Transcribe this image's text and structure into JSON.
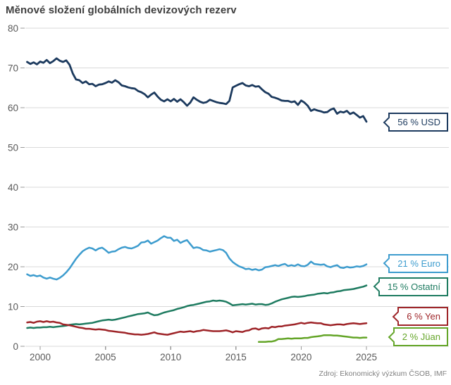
{
  "title": "Měnové složení globálních devizových rezerv",
  "source": "Zdroj: Ekonomický výzkum ČSOB, IMF",
  "chart_data": {
    "type": "line",
    "title": "Měnové složení globálních devizových rezerv",
    "xlabel": "",
    "ylabel": "",
    "grid": true,
    "x_axis": {
      "ticks": [
        2000,
        2005,
        2010,
        2015,
        2020,
        2025
      ],
      "range": [
        1998.7,
        2025.6
      ]
    },
    "y_axis": {
      "ticks": [
        0,
        10,
        20,
        30,
        40,
        50,
        60,
        70,
        80
      ],
      "range": [
        0,
        80
      ]
    },
    "x_unit": "year (quarterly data)",
    "y_unit": "% of global FX reserves",
    "series": [
      {
        "key": "ostatni",
        "name": "Ostatní",
        "color": "#1e7b60",
        "width": 2.5,
        "callout_label": "15 % Ostatní",
        "callout_value": 15.05,
        "start_year": 1999.0,
        "step": 0.25,
        "values": [
          4.6,
          4.7,
          4.6,
          4.7,
          4.7,
          4.8,
          4.8,
          4.9,
          4.8,
          4.9,
          5.0,
          5.1,
          5.2,
          5.4,
          5.5,
          5.6,
          5.5,
          5.6,
          5.7,
          5.8,
          5.9,
          6.1,
          6.3,
          6.5,
          6.6,
          6.7,
          6.6,
          6.7,
          6.9,
          7.1,
          7.3,
          7.5,
          7.7,
          7.9,
          8.1,
          8.2,
          8.3,
          8.5,
          8.1,
          7.8,
          7.9,
          8.2,
          8.5,
          8.7,
          8.9,
          9.1,
          9.4,
          9.6,
          9.8,
          10.1,
          10.3,
          10.4,
          10.6,
          10.8,
          11.0,
          11.2,
          11.3,
          11.5,
          11.4,
          11.5,
          11.4,
          11.2,
          10.8,
          10.3,
          10.4,
          10.5,
          10.6,
          10.5,
          10.6,
          10.7,
          10.5,
          10.6,
          10.6,
          10.4,
          10.5,
          10.8,
          11.2,
          11.5,
          11.8,
          12.0,
          12.2,
          12.4,
          12.5,
          12.4,
          12.5,
          12.6,
          12.8,
          12.9,
          13.0,
          13.2,
          13.3,
          13.4,
          13.3,
          13.5,
          13.6,
          13.8,
          13.9,
          14.1,
          14.2,
          14.3,
          14.4,
          14.6,
          14.8,
          15.0,
          15.3
        ]
      },
      {
        "key": "yen",
        "name": "Yen",
        "color": "#9e2428",
        "width": 2.5,
        "callout_label": "6 % Yen",
        "callout_value": 7.55,
        "start_year": 1999.0,
        "step": 0.25,
        "values": [
          6.0,
          6.1,
          5.9,
          6.2,
          6.3,
          6.1,
          6.3,
          6.1,
          6.2,
          6.0,
          5.9,
          5.5,
          5.4,
          5.3,
          5.1,
          4.9,
          4.7,
          4.6,
          4.4,
          4.4,
          4.3,
          4.2,
          4.3,
          4.2,
          4.1,
          3.9,
          3.8,
          3.7,
          3.6,
          3.5,
          3.4,
          3.2,
          3.1,
          3.0,
          3.0,
          2.9,
          3.0,
          3.1,
          3.3,
          3.5,
          3.2,
          3.1,
          3.0,
          2.9,
          3.1,
          3.3,
          3.5,
          3.7,
          3.6,
          3.7,
          3.8,
          3.6,
          3.8,
          3.9,
          4.1,
          4.0,
          3.9,
          3.8,
          3.8,
          3.8,
          3.9,
          4.0,
          3.8,
          3.5,
          3.8,
          3.7,
          3.6,
          3.9,
          4.0,
          4.4,
          4.5,
          4.2,
          4.5,
          4.6,
          4.5,
          4.9,
          4.8,
          5.0,
          5.0,
          5.2,
          5.3,
          5.4,
          5.5,
          5.7,
          5.9,
          5.7,
          5.9,
          6.0,
          5.9,
          5.8,
          5.8,
          5.5,
          5.4,
          5.3,
          5.4,
          5.5,
          5.5,
          5.4,
          5.6,
          5.7,
          5.8,
          5.7,
          5.6,
          5.7,
          5.8
        ]
      },
      {
        "key": "juan",
        "name": "Jüan",
        "color": "#64a528",
        "width": 2.5,
        "callout_label": "2 % Jüan",
        "callout_value": 2.4,
        "start_year": 2016.75,
        "step": 0.25,
        "values": [
          1.1,
          1.1,
          1.1,
          1.2,
          1.2,
          1.4,
          1.8,
          1.8,
          1.9,
          2.0,
          1.9,
          2.0,
          2.0,
          2.0,
          2.1,
          2.1,
          2.3,
          2.4,
          2.5,
          2.6,
          2.8,
          2.8,
          2.8,
          2.7,
          2.7,
          2.6,
          2.5,
          2.4,
          2.3,
          2.2,
          2.2,
          2.1,
          2.2,
          2.2
        ]
      },
      {
        "key": "euro",
        "name": "Euro",
        "color": "#3d9cce",
        "width": 2.5,
        "callout_label": "21 % Euro",
        "callout_value": 20.9,
        "start_year": 1999.0,
        "step": 0.25,
        "values": [
          18.1,
          17.7,
          17.9,
          17.6,
          17.8,
          17.3,
          17.0,
          17.3,
          17.0,
          16.8,
          17.2,
          17.8,
          18.6,
          19.6,
          20.8,
          22.0,
          23.0,
          23.9,
          24.4,
          24.8,
          24.6,
          24.1,
          24.6,
          24.8,
          24.2,
          23.5,
          23.8,
          23.9,
          24.4,
          24.8,
          25.0,
          24.7,
          24.6,
          24.9,
          25.3,
          26.1,
          26.2,
          26.6,
          25.8,
          26.2,
          26.6,
          27.2,
          27.7,
          27.3,
          27.3,
          26.5,
          26.8,
          26.0,
          26.4,
          26.7,
          25.7,
          24.7,
          24.9,
          24.7,
          24.2,
          24.1,
          23.8,
          24.0,
          24.2,
          24.4,
          24.2,
          23.5,
          22.1,
          21.2,
          20.6,
          20.1,
          19.8,
          19.4,
          19.5,
          19.2,
          19.4,
          19.1,
          19.3,
          19.9,
          20.0,
          20.2,
          20.4,
          20.2,
          20.5,
          20.7,
          20.2,
          20.4,
          20.2,
          20.6,
          20.2,
          20.1,
          20.5,
          21.3,
          20.7,
          20.6,
          20.5,
          20.6,
          20.1,
          19.9,
          20.2,
          20.4,
          19.8,
          19.7,
          20.0,
          19.8,
          19.9,
          20.1,
          20.0,
          20.2,
          20.6
        ]
      },
      {
        "key": "usd",
        "name": "USD",
        "color": "#1c3a5e",
        "width": 2.8,
        "callout_label": "56 % USD",
        "callout_value": 56.4,
        "start_year": 1999.0,
        "step": 0.25,
        "values": [
          71.5,
          71.0,
          71.4,
          70.9,
          71.6,
          71.3,
          72.0,
          71.2,
          71.7,
          72.4,
          71.8,
          71.5,
          71.9,
          70.8,
          68.6,
          67.1,
          66.9,
          66.2,
          66.6,
          65.9,
          66.0,
          65.4,
          65.8,
          65.9,
          66.2,
          66.6,
          66.3,
          66.9,
          66.4,
          65.6,
          65.4,
          65.1,
          64.9,
          64.8,
          64.2,
          63.9,
          63.4,
          62.6,
          63.3,
          63.8,
          62.8,
          62.0,
          61.6,
          62.1,
          61.6,
          62.2,
          61.5,
          62.1,
          61.4,
          60.5,
          61.3,
          62.6,
          62.0,
          61.5,
          61.2,
          61.4,
          62.0,
          61.7,
          61.4,
          61.2,
          61.1,
          60.9,
          61.7,
          65.1,
          65.5,
          65.9,
          66.2,
          65.6,
          65.4,
          65.7,
          65.3,
          65.4,
          64.6,
          63.9,
          63.5,
          62.7,
          62.5,
          62.2,
          61.8,
          61.7,
          61.7,
          61.4,
          61.6,
          60.7,
          61.8,
          61.3,
          60.5,
          59.2,
          59.6,
          59.3,
          59.1,
          58.8,
          58.9,
          59.5,
          59.8,
          58.5,
          59.0,
          58.8,
          59.2,
          58.4,
          58.8,
          58.2,
          57.5,
          57.9,
          56.5
        ]
      }
    ],
    "colors": {
      "grid": "#d9d9d9",
      "tick": "#9a9a9a",
      "axis_text": "#595959",
      "title_text": "#3f3f3f",
      "source_text": "#808080"
    }
  }
}
